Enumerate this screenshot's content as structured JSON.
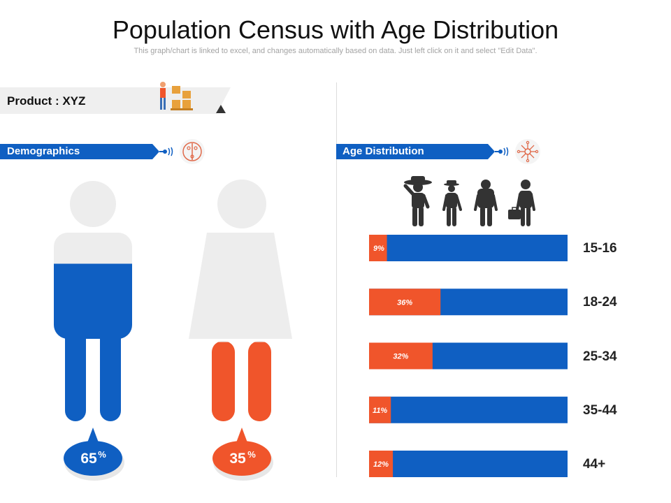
{
  "title": "Population Census with Age Distribution",
  "subtitle": "This graph/chart is linked to excel, and changes automatically based on data. Just left click on it and select \"Edit Data\".",
  "product": {
    "label": "Product : XYZ"
  },
  "demographics": {
    "label": "Demographics",
    "male": {
      "value": 65,
      "display": "65",
      "unit": "%"
    },
    "female": {
      "value": 35,
      "display": "35",
      "unit": "%"
    }
  },
  "age_section": {
    "label": "Age Distribution"
  },
  "colors": {
    "blue": "#0f5fc2",
    "orange": "#f0552b",
    "grey": "#ededed",
    "dark": "#333333"
  },
  "chart_data": {
    "type": "bar",
    "orientation": "horizontal",
    "stacked": true,
    "title": "Age Distribution",
    "categories": [
      "15-16",
      "18-24",
      "25-34",
      "35-44",
      "44+"
    ],
    "values": [
      9,
      36,
      32,
      11,
      12
    ],
    "labels": [
      "9%",
      "36%",
      "32%",
      "11%",
      "12%"
    ],
    "xlim": [
      0,
      100
    ]
  }
}
